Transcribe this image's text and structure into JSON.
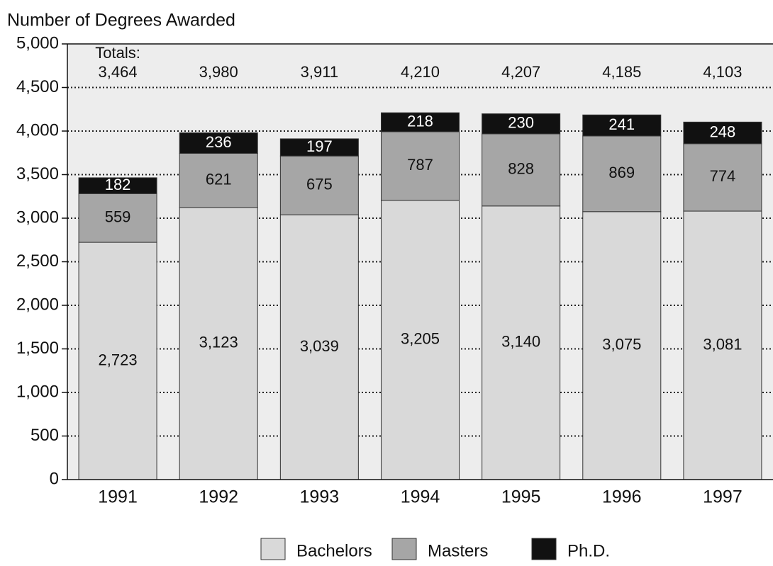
{
  "chart_data": {
    "type": "stacked_bar",
    "y_label": "Number of Degrees Awarded",
    "categories": [
      "1991",
      "1992",
      "1993",
      "1994",
      "1995",
      "1996",
      "1997"
    ],
    "series": [
      {
        "name": "Bachelors",
        "color": "#d9d9d9",
        "values": [
          2723,
          3123,
          3039,
          3205,
          3140,
          3075,
          3081
        ],
        "value_labels": [
          "2,723",
          "3,123",
          "3,039",
          "3,205",
          "3,140",
          "3,075",
          "3,081"
        ]
      },
      {
        "name": "Masters",
        "color": "#a6a6a6",
        "values": [
          559,
          621,
          675,
          787,
          828,
          869,
          774
        ]
      },
      {
        "name": "Ph.D.",
        "color": "#111111",
        "values": [
          182,
          236,
          197,
          218,
          230,
          241,
          248
        ]
      }
    ],
    "totals_label": "Totals:",
    "totals": [
      3464,
      3980,
      3911,
      4210,
      4207,
      4185,
      4103
    ],
    "totals_labels": [
      "3,464",
      "3,980",
      "3,911",
      "4,210",
      "4,207",
      "4,185",
      "4,103"
    ],
    "ylim": [
      0,
      5000
    ],
    "yticks": [
      0,
      500,
      {
        "value": 1000,
        "label": "1,000"
      },
      {
        "value": 1500,
        "label": "1,500"
      },
      {
        "value": 2000,
        "label": "2,000"
      },
      {
        "value": 2500,
        "label": "2,500"
      },
      {
        "value": 3000,
        "label": "3,000"
      },
      {
        "value": 3500,
        "label": "3,500"
      },
      {
        "value": 4000,
        "label": "4,000"
      },
      {
        "value": 4500,
        "label": "4,500"
      },
      {
        "value": 5000,
        "label": "5,000"
      }
    ],
    "grid": true
  }
}
